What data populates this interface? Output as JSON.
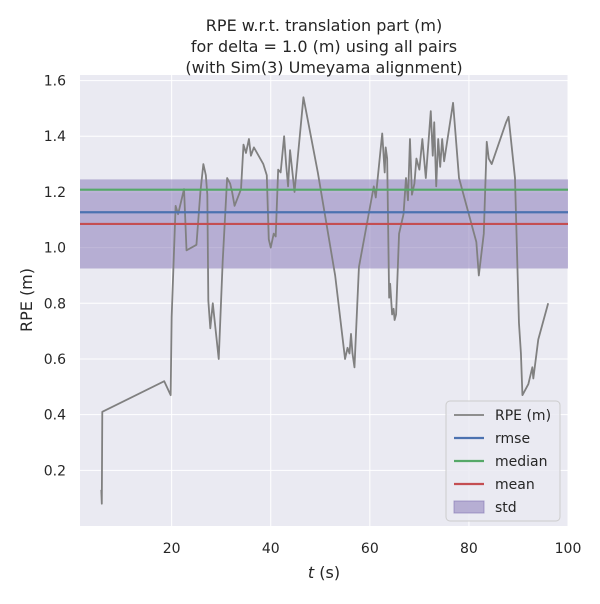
{
  "chart_data": {
    "type": "line",
    "title_lines": [
      "RPE w.r.t. translation part (m)",
      "for delta = 1.0 (m) using all pairs",
      "(with Sim(3) Umeyama alignment)"
    ],
    "xlabel_var": "t",
    "xlabel_unit": " (s)",
    "ylabel": "RPE (m)",
    "xlim": [
      1.5,
      100
    ],
    "ylim": [
      0.0,
      1.62
    ],
    "xticks": [
      20,
      40,
      60,
      80,
      100
    ],
    "yticks": [
      0.2,
      0.4,
      0.6,
      0.8,
      1.0,
      1.2,
      1.4,
      1.6
    ],
    "grid": true,
    "legend_position": "lower-right",
    "series": [
      {
        "name": "RPE (m)",
        "color": "#808080",
        "points": [
          [
            5.8,
            0.13
          ],
          [
            5.9,
            0.08
          ],
          [
            6.0,
            0.41
          ],
          [
            18.5,
            0.52
          ],
          [
            19.8,
            0.47
          ],
          [
            20.0,
            0.75
          ],
          [
            20.8,
            1.15
          ],
          [
            21.3,
            1.12
          ],
          [
            22.5,
            1.21
          ],
          [
            23.0,
            0.99
          ],
          [
            25.0,
            1.01
          ],
          [
            25.8,
            1.2
          ],
          [
            26.4,
            1.3
          ],
          [
            26.9,
            1.26
          ],
          [
            27.2,
            1.19
          ],
          [
            27.4,
            0.81
          ],
          [
            27.8,
            0.71
          ],
          [
            28.3,
            0.8
          ],
          [
            29.5,
            0.6
          ],
          [
            30.3,
            0.95
          ],
          [
            31.2,
            1.25
          ],
          [
            31.8,
            1.23
          ],
          [
            32.2,
            1.2
          ],
          [
            32.7,
            1.15
          ],
          [
            34.0,
            1.21
          ],
          [
            34.5,
            1.37
          ],
          [
            35.0,
            1.34
          ],
          [
            35.6,
            1.39
          ],
          [
            36.0,
            1.33
          ],
          [
            36.6,
            1.36
          ],
          [
            38.5,
            1.3
          ],
          [
            39.2,
            1.26
          ],
          [
            39.6,
            1.03
          ],
          [
            40.0,
            1.0
          ],
          [
            40.6,
            1.05
          ],
          [
            41.0,
            1.04
          ],
          [
            41.5,
            1.28
          ],
          [
            42.0,
            1.27
          ],
          [
            42.7,
            1.4
          ],
          [
            43.1,
            1.3
          ],
          [
            43.5,
            1.22
          ],
          [
            43.9,
            1.35
          ],
          [
            44.2,
            1.3
          ],
          [
            44.8,
            1.2
          ],
          [
            46.6,
            1.54
          ],
          [
            49.5,
            1.27
          ],
          [
            53.0,
            0.9
          ],
          [
            55.0,
            0.6
          ],
          [
            55.5,
            0.64
          ],
          [
            55.9,
            0.62
          ],
          [
            56.2,
            0.69
          ],
          [
            56.5,
            0.62
          ],
          [
            56.9,
            0.57
          ],
          [
            57.8,
            0.93
          ],
          [
            60.8,
            1.22
          ],
          [
            61.2,
            1.18
          ],
          [
            62.5,
            1.41
          ],
          [
            63.0,
            1.27
          ],
          [
            63.2,
            1.36
          ],
          [
            63.5,
            1.32
          ],
          [
            63.9,
            0.82
          ],
          [
            64.1,
            0.87
          ],
          [
            64.5,
            0.76
          ],
          [
            64.8,
            0.78
          ],
          [
            65.0,
            0.74
          ],
          [
            65.3,
            0.76
          ],
          [
            65.9,
            1.05
          ],
          [
            66.8,
            1.12
          ],
          [
            67.3,
            1.25
          ],
          [
            67.7,
            1.17
          ],
          [
            68.1,
            1.39
          ],
          [
            68.5,
            1.19
          ],
          [
            69.0,
            1.23
          ],
          [
            69.4,
            1.32
          ],
          [
            70.0,
            1.28
          ],
          [
            70.6,
            1.39
          ],
          [
            71.3,
            1.25
          ],
          [
            72.3,
            1.49
          ],
          [
            72.7,
            1.33
          ],
          [
            73.0,
            1.45
          ],
          [
            73.4,
            1.22
          ],
          [
            73.8,
            1.39
          ],
          [
            74.2,
            1.29
          ],
          [
            74.6,
            1.39
          ],
          [
            75.0,
            1.31
          ],
          [
            76.8,
            1.52
          ],
          [
            78.0,
            1.25
          ],
          [
            81.5,
            1.02
          ],
          [
            82.0,
            0.9
          ],
          [
            83.0,
            1.05
          ],
          [
            83.6,
            1.38
          ],
          [
            84.0,
            1.32
          ],
          [
            84.6,
            1.3
          ],
          [
            87.5,
            1.45
          ],
          [
            88.0,
            1.47
          ],
          [
            89.3,
            1.25
          ],
          [
            90.1,
            0.73
          ],
          [
            90.5,
            0.62
          ],
          [
            90.8,
            0.47
          ],
          [
            92.0,
            0.51
          ],
          [
            92.8,
            0.57
          ],
          [
            93.0,
            0.53
          ],
          [
            94.0,
            0.67
          ],
          [
            96.0,
            0.8
          ]
        ]
      },
      {
        "name": "rmse",
        "color": "#4c72b0",
        "value": 1.127
      },
      {
        "name": "median",
        "color": "#55a868",
        "value": 1.208
      },
      {
        "name": "mean",
        "color": "#c44e52",
        "value": 1.085
      },
      {
        "name": "std",
        "color": "#8172b3",
        "range": [
          0.925,
          1.245
        ]
      }
    ]
  }
}
